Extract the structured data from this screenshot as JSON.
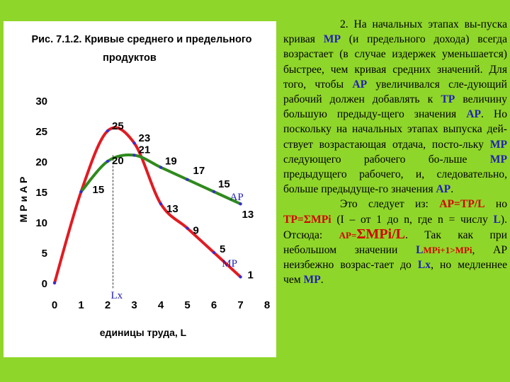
{
  "chart_data": {
    "type": "line",
    "title_line1": "Рис. 7.1.2. Кривые среднего и предельного",
    "title_line2": "продуктов",
    "xlabel": "единицы труда, L",
    "ylabel": "М Р  и  А Р",
    "xlim": [
      0,
      8
    ],
    "ylim": [
      0,
      30
    ],
    "xticks": [
      "0",
      "1",
      "2",
      "3",
      "4",
      "5",
      "6",
      "7",
      "8"
    ],
    "yticks": [
      "0",
      "5",
      "10",
      "15",
      "20",
      "25",
      "30"
    ],
    "grid": false,
    "series": [
      {
        "name": "MP",
        "color": "#e11b22",
        "points": [
          [
            0,
            0
          ],
          [
            1,
            15
          ],
          [
            2,
            25
          ],
          [
            3,
            23
          ],
          [
            4,
            13
          ],
          [
            5,
            9
          ],
          [
            6,
            5
          ],
          [
            7,
            1
          ]
        ],
        "labels": [
          "",
          "15",
          "25",
          "23",
          "13",
          "9",
          "5",
          "1"
        ]
      },
      {
        "name": "AP",
        "color": "#2f8a1d",
        "points": [
          [
            1,
            15
          ],
          [
            2,
            20
          ],
          [
            3,
            21
          ],
          [
            4,
            19
          ],
          [
            5,
            17
          ],
          [
            6,
            15
          ],
          [
            7,
            13
          ]
        ],
        "labels": [
          "",
          "20",
          "21",
          "19",
          "17",
          "15",
          "13"
        ]
      }
    ],
    "annotations": {
      "ap_label": "AP",
      "mp_label": "MP",
      "lx_label": "Lx",
      "lx_value": 2.2
    }
  },
  "text": {
    "p1_lead": "2. На начальных этапах вы-пуска кривая ",
    "mp": "МР",
    "p1_a": " (и предельного дохода) всегда возрастает (в случае издержек уменьшается) быстрее, чем кривая средних значений. Для того, чтобы ",
    "ap": "АР",
    "p1_b": " увеличивался сле-дующий рабочий должен добавлять к ",
    "tp": "ТР",
    "p1_c": " величину большую предыду-щего значения ",
    "p1_d": ". Но поскольку на начальных этапах выпуска дей-ствует возрастающая отдача, посто-льку ",
    "p1_e": " следующего рабочего бо-льше ",
    "p1_f": " предыдущего рабочего, и, следовательно, больше предыдуще-го значения ",
    "p1_end": ".",
    "p2_lead": "Это следует из: ",
    "formula1": "AP=TP/L",
    "p2_a": " но ",
    "formula2": "TP=ΣMPi",
    "p2_b": " (I – от 1 до n, где n = числу ",
    "l_letter": "L",
    "p2_c": "). Отсюда: ",
    "ap_eq": "AP=",
    "sigma_mpi": "ΣMPi",
    "div_l": "/L",
    "p2_d": ". Так как при небольшом значении ",
    "mpi_cond": "MPi+1>MPi",
    "p2_e": ", АР неизбежно возрас-тает до ",
    "lx": "Lx",
    "p2_f": ", но медленнее чем ",
    "mp_end": "МР",
    "p2_end": "."
  }
}
